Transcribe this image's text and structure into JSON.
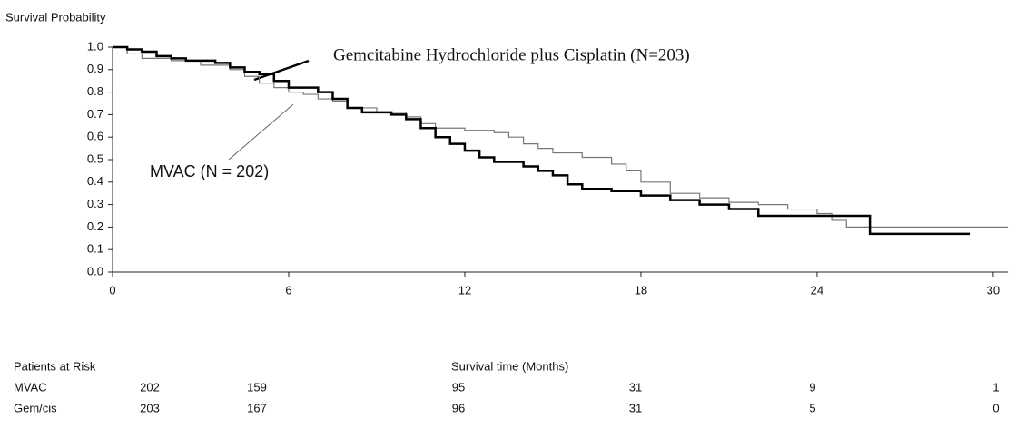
{
  "chart_data": {
    "type": "step",
    "y_label": "Survival Probability",
    "x_label": "Survival time (Months)",
    "xlim": [
      0,
      30.5
    ],
    "ylim": [
      0,
      1
    ],
    "xticks": [
      0,
      6,
      12,
      18,
      24,
      30
    ],
    "yticks": [
      {
        "value": 0,
        "label": "0.0"
      },
      0.1,
      0.2,
      0.3,
      0.4,
      0.5,
      0.6,
      0.7,
      0.8,
      0.9,
      {
        "value": 1,
        "label": "1.0"
      }
    ],
    "annotations": [
      "Gemcitabine Hydrochloride plus Cisplatin (N=203)",
      "MVAC (N = 202)"
    ],
    "series": [
      {
        "name": "Gem/cis",
        "color": "#000000",
        "width": 2.5,
        "x": [
          0,
          0.5,
          1,
          1.5,
          2,
          2.5,
          3.5,
          4,
          4.5,
          5,
          5.5,
          6,
          7,
          7.5,
          8,
          8.5,
          9.5,
          10,
          10.5,
          11,
          11.5,
          12,
          12.5,
          13,
          14,
          14.5,
          15,
          15.5,
          16,
          17,
          18,
          19,
          20,
          21,
          22,
          24,
          25.8,
          29.2
        ],
        "values": [
          1.0,
          0.99,
          0.98,
          0.96,
          0.95,
          0.94,
          0.93,
          0.91,
          0.89,
          0.88,
          0.85,
          0.82,
          0.8,
          0.77,
          0.73,
          0.71,
          0.7,
          0.68,
          0.64,
          0.6,
          0.57,
          0.54,
          0.51,
          0.49,
          0.47,
          0.45,
          0.43,
          0.39,
          0.37,
          0.36,
          0.34,
          0.32,
          0.3,
          0.28,
          0.25,
          0.25,
          0.17,
          0.17
        ]
      },
      {
        "name": "MVAC",
        "color": "#777777",
        "width": 1.2,
        "x": [
          0,
          0.5,
          1,
          2,
          3,
          4,
          4.5,
          5,
          5.5,
          6,
          6.5,
          7,
          7.5,
          8,
          9,
          10,
          10.5,
          11,
          12,
          13,
          13.5,
          14,
          14.5,
          15,
          16,
          17,
          17.5,
          18,
          19,
          20,
          21,
          22,
          23,
          24,
          24.5,
          25,
          30.5
        ],
        "values": [
          1.0,
          0.97,
          0.95,
          0.94,
          0.92,
          0.9,
          0.87,
          0.84,
          0.82,
          0.8,
          0.79,
          0.77,
          0.76,
          0.73,
          0.71,
          0.69,
          0.66,
          0.64,
          0.63,
          0.62,
          0.6,
          0.57,
          0.55,
          0.53,
          0.51,
          0.48,
          0.45,
          0.4,
          0.35,
          0.33,
          0.31,
          0.3,
          0.28,
          0.26,
          0.23,
          0.2,
          0.2
        ]
      }
    ],
    "risk_table": {
      "title": "Patients at Risk",
      "rows": [
        {
          "name": "MVAC",
          "values": [
            202,
            159,
            95,
            31,
            9,
            1
          ]
        },
        {
          "name": "Gem/cis",
          "values": [
            203,
            167,
            96,
            31,
            5,
            0
          ]
        }
      ]
    }
  }
}
